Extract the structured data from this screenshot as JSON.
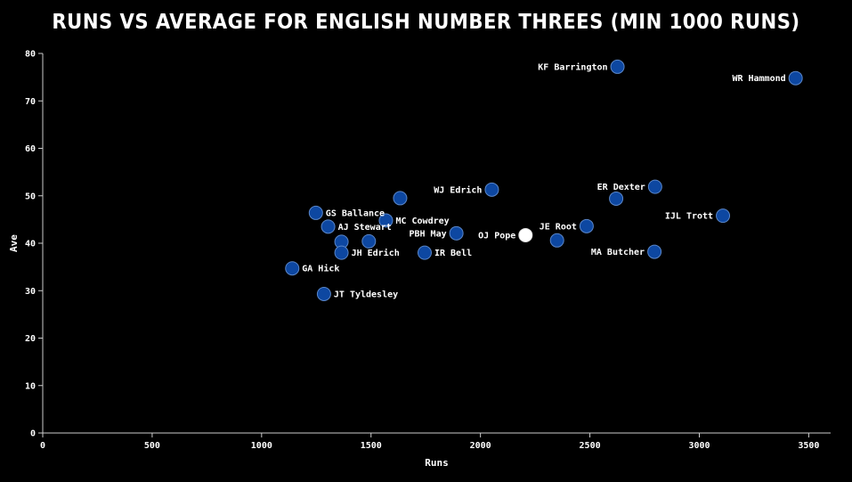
{
  "chart_data": {
    "type": "scatter",
    "title": "RUNS VS AVERAGE FOR ENGLISH NUMBER THREES (MIN 1000 RUNS)",
    "xlabel": "Runs",
    "ylabel": "Ave",
    "xlim": [
      0,
      3600
    ],
    "ylim": [
      0,
      80
    ],
    "xticks": [
      0,
      500,
      1000,
      1500,
      2000,
      2500,
      3000,
      3500
    ],
    "yticks": [
      0,
      10,
      20,
      30,
      40,
      50,
      60,
      70,
      80
    ],
    "grid": false,
    "colors": {
      "point": "#0d47a1",
      "highlight": "#ffffff",
      "axis": "#cccccc",
      "text": "#ffffff"
    },
    "points": [
      {
        "label": "KF Barrington",
        "x": 2626,
        "y": 77.2,
        "side": "left"
      },
      {
        "label": "WR Hammond",
        "x": 3440,
        "y": 74.8,
        "side": "left"
      },
      {
        "label": "WJ Edrich",
        "x": 2052,
        "y": 51.3,
        "side": "left"
      },
      {
        "label": "ER Dexter",
        "x": 2798,
        "y": 51.9,
        "side": "left"
      },
      {
        "label": "",
        "x": 2620,
        "y": 49.4,
        "side": "right"
      },
      {
        "label": "IJL Trott",
        "x": 3108,
        "y": 45.8,
        "side": "left"
      },
      {
        "label": "",
        "x": 1633,
        "y": 49.5,
        "side": "right"
      },
      {
        "label": "GS Ballance",
        "x": 1248,
        "y": 46.4,
        "side": "right"
      },
      {
        "label": "MC Cowdrey",
        "x": 1568,
        "y": 44.8,
        "side": "right"
      },
      {
        "label": "AJ Stewart",
        "x": 1304,
        "y": 43.5,
        "side": "right"
      },
      {
        "label": "JE Root",
        "x": 2485,
        "y": 43.6,
        "side": "left"
      },
      {
        "label": "PBH May",
        "x": 1890,
        "y": 42.1,
        "side": "left"
      },
      {
        "label": "OJ Pope",
        "x": 2206,
        "y": 41.7,
        "side": "left",
        "highlight": true
      },
      {
        "label": "",
        "x": 2350,
        "y": 40.6,
        "side": "right"
      },
      {
        "label": "",
        "x": 1365,
        "y": 40.3,
        "side": "right"
      },
      {
        "label": "",
        "x": 1490,
        "y": 40.4,
        "side": "right"
      },
      {
        "label": "JH Edrich",
        "x": 1365,
        "y": 38.0,
        "side": "right"
      },
      {
        "label": "IR Bell",
        "x": 1745,
        "y": 38.0,
        "side": "right"
      },
      {
        "label": "MA Butcher",
        "x": 2795,
        "y": 38.2,
        "side": "left"
      },
      {
        "label": "GA Hick",
        "x": 1140,
        "y": 34.7,
        "side": "right"
      },
      {
        "label": "JT Tyldesley",
        "x": 1285,
        "y": 29.3,
        "side": "right"
      }
    ]
  }
}
